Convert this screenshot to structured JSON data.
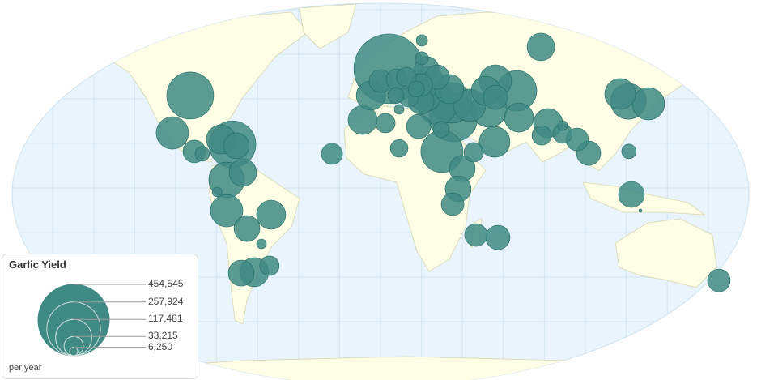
{
  "legend": {
    "title": "Garlic Yield",
    "unit": "per year",
    "scale_values": [
      454545,
      257924,
      117481,
      33215,
      6250
    ],
    "scale_labels": [
      "454,545",
      "257,924",
      "117,481",
      "33,215",
      "6,250"
    ]
  },
  "colors": {
    "ocean": "#eaf4fc",
    "land": "#fefee6",
    "border": "#d6d6b0",
    "bubble": "#3f8a83",
    "bubble_stroke": "#1f6b64",
    "grid": "#d2e6f3"
  },
  "chart_data": {
    "type": "bubble-map",
    "projection": "robinson",
    "max_value": 454545,
    "bubbles": [
      {
        "lon": -92.9,
        "lat": 41.5,
        "value": 197000
      },
      {
        "lon": -101.6,
        "lat": 24.7,
        "value": 94000
      },
      {
        "lon": -90.9,
        "lat": 16.4,
        "value": 46000
      },
      {
        "lon": -87,
        "lat": 15.3,
        "value": 19000
      },
      {
        "lon": -77.9,
        "lat": 21.8,
        "value": 76000
      },
      {
        "lon": -72.3,
        "lat": 19.6,
        "value": 197000
      },
      {
        "lon": -70.4,
        "lat": 18.9,
        "value": 60000
      },
      {
        "lon": -75.1,
        "lat": 3.6,
        "value": 114000
      },
      {
        "lon": -67.2,
        "lat": 6.9,
        "value": 68000
      },
      {
        "lon": -79.8,
        "lat": -1.8,
        "value": 8500
      },
      {
        "lon": -75.1,
        "lat": -10.2,
        "value": 94000
      },
      {
        "lon": -53.4,
        "lat": -12,
        "value": 76000
      },
      {
        "lon": -65.2,
        "lat": -18.2,
        "value": 60000
      },
      {
        "lon": -58.1,
        "lat": -25.1,
        "value": 8500
      },
      {
        "lon": -68,
        "lat": -38.2,
        "value": 60000
      },
      {
        "lon": -61.7,
        "lat": -37.8,
        "value": 76000
      },
      {
        "lon": -54.2,
        "lat": -34.9,
        "value": 34000
      },
      {
        "lon": -23.7,
        "lat": 15.3,
        "value": 40000
      },
      {
        "lon": -8.7,
        "lat": 30.5,
        "value": 76000
      },
      {
        "lon": 2.4,
        "lat": 29.1,
        "value": 34000
      },
      {
        "lon": -4.7,
        "lat": 41.5,
        "value": 76000
      },
      {
        "lon": 4,
        "lat": 53.5,
        "value": 434000
      },
      {
        "lon": 20.2,
        "lat": 66.2,
        "value": 11500
      },
      {
        "lon": 20.2,
        "lat": 58.2,
        "value": 15000
      },
      {
        "lon": 22.5,
        "lat": 53.5,
        "value": 53000
      },
      {
        "lon": 19.8,
        "lat": 46.2,
        "value": 46000
      },
      {
        "lon": 23.7,
        "lat": 48,
        "value": 76000
      },
      {
        "lon": 27.7,
        "lat": 49.8,
        "value": 53000
      },
      {
        "lon": 12.6,
        "lat": 49.8,
        "value": 34000
      },
      {
        "lon": 7.9,
        "lat": 48.7,
        "value": 40000
      },
      {
        "lon": 0,
        "lat": 48,
        "value": 46000
      },
      {
        "lon": 17.4,
        "lat": 44.4,
        "value": 23000
      },
      {
        "lon": 21.7,
        "lat": 41.5,
        "value": 94000
      },
      {
        "lon": 27.7,
        "lat": 37.1,
        "value": 135000
      },
      {
        "lon": 35.6,
        "lat": 31.6,
        "value": 211000
      },
      {
        "lon": 43.5,
        "lat": 37.1,
        "value": 94000
      },
      {
        "lon": 51.4,
        "lat": 43.6,
        "value": 76000
      },
      {
        "lon": 29.6,
        "lat": 26.2,
        "value": 23000
      },
      {
        "lon": 9.1,
        "lat": 35.3,
        "value": 8500
      },
      {
        "lon": 19.8,
        "lat": 38.9,
        "value": 60000
      },
      {
        "lon": 33.6,
        "lat": 44.4,
        "value": 76000
      },
      {
        "lon": 13.8,
        "lat": 40.7,
        "value": 34000
      },
      {
        "lon": 7.5,
        "lat": 41.5,
        "value": 23000
      },
      {
        "lon": 18.6,
        "lat": 27.6,
        "value": 53000
      },
      {
        "lon": 30,
        "lat": 16.4,
        "value": 159000
      },
      {
        "lon": 39.9,
        "lat": 8.7,
        "value": 60000
      },
      {
        "lon": 37.9,
        "lat": -0.4,
        "value": 60000
      },
      {
        "lon": 35.2,
        "lat": -7.3,
        "value": 46000
      },
      {
        "lon": 9.1,
        "lat": 17.8,
        "value": 28000
      },
      {
        "lon": 46.6,
        "lat": -21.1,
        "value": 46000
      },
      {
        "lon": 57.3,
        "lat": -22.2,
        "value": 53000
      },
      {
        "lon": 78.3,
        "lat": 63.3,
        "value": 68000
      },
      {
        "lon": 34.8,
        "lat": 38.2,
        "value": 147000
      },
      {
        "lon": 53,
        "lat": 35.3,
        "value": 114000
      },
      {
        "lon": 56.1,
        "lat": 40.7,
        "value": 53000
      },
      {
        "lon": 66.4,
        "lat": 43.6,
        "value": 147000
      },
      {
        "lon": 56.1,
        "lat": 48,
        "value": 94000
      },
      {
        "lon": 67.6,
        "lat": 31.6,
        "value": 76000
      },
      {
        "lon": 55.7,
        "lat": 20.7,
        "value": 85000
      },
      {
        "lon": 45.5,
        "lat": 16,
        "value": 34000
      },
      {
        "lon": 81.8,
        "lat": 29.1,
        "value": 76000
      },
      {
        "lon": 78.7,
        "lat": 23.6,
        "value": 34000
      },
      {
        "lon": 88.9,
        "lat": 28,
        "value": 8500
      },
      {
        "lon": 88.9,
        "lat": 24.4,
        "value": 34000
      },
      {
        "lon": 96,
        "lat": 21.8,
        "value": 46000
      },
      {
        "lon": 101.6,
        "lat": 15.6,
        "value": 53000
      },
      {
        "lon": 117,
        "lat": 42.2,
        "value": 85000
      },
      {
        "lon": 121,
        "lat": 38.9,
        "value": 114000
      },
      {
        "lon": 130.8,
        "lat": 37.8,
        "value": 94000
      },
      {
        "lon": 121.3,
        "lat": 16.4,
        "value": 19000
      },
      {
        "lon": 122.5,
        "lat": -2.9,
        "value": 60000
      },
      {
        "lon": 126.9,
        "lat": -10.2,
        "value": 940
      },
      {
        "lon": 165.2,
        "lat": -41.5,
        "value": 46000
      }
    ]
  }
}
